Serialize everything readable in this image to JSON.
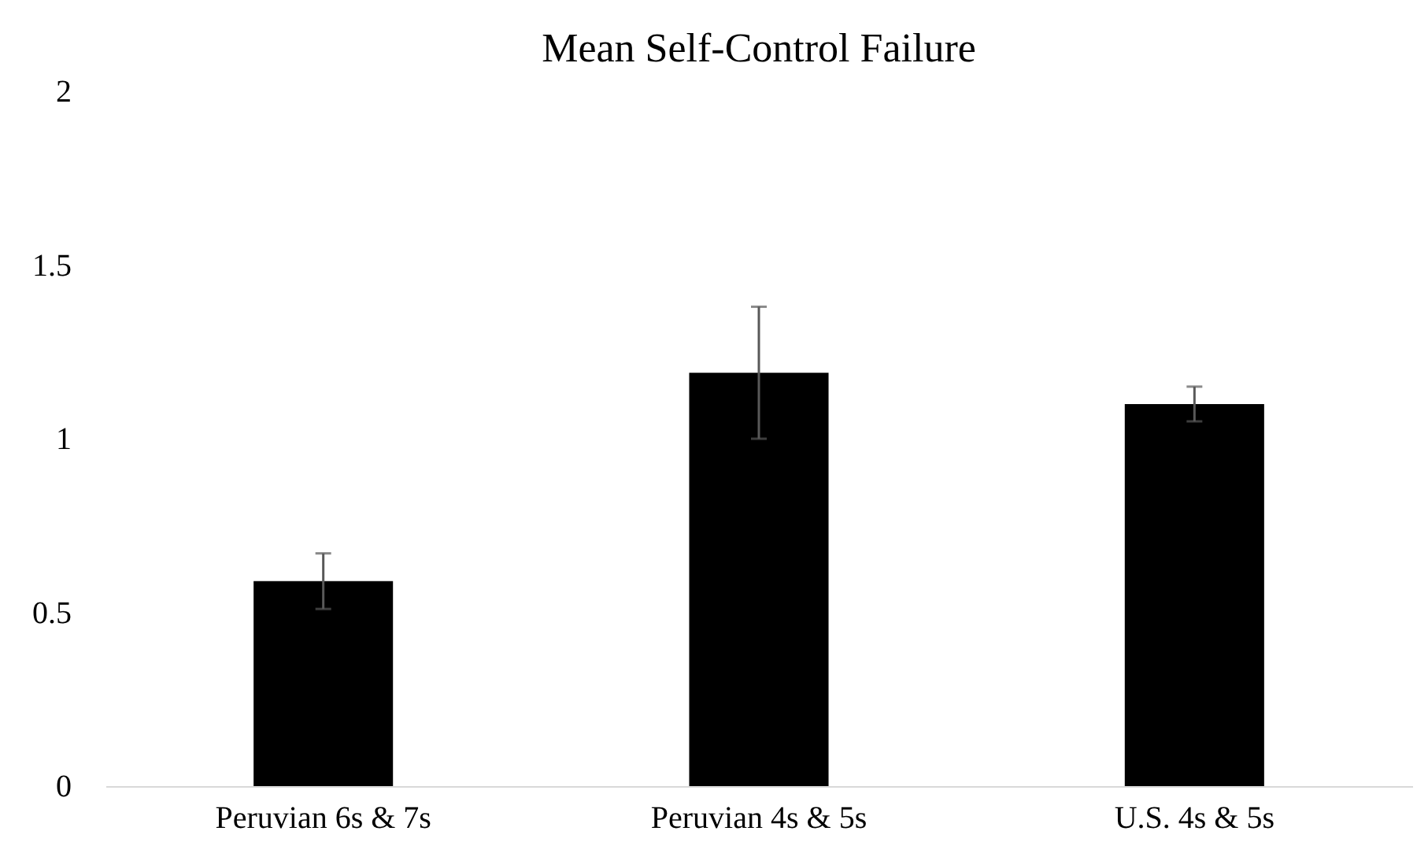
{
  "chart_data": {
    "type": "bar",
    "title": "Mean Self-Control Failure",
    "categories": [
      "Peruvian 6s & 7s",
      "Peruvian 4s & 5s",
      "U.S. 4s & 5s"
    ],
    "values": [
      0.59,
      1.19,
      1.1
    ],
    "errors": [
      0.08,
      0.19,
      0.05
    ],
    "color": "#000000",
    "ylim": [
      0,
      2
    ],
    "yticks": [
      0,
      0.5,
      1,
      1.5,
      2
    ],
    "grid": false
  }
}
